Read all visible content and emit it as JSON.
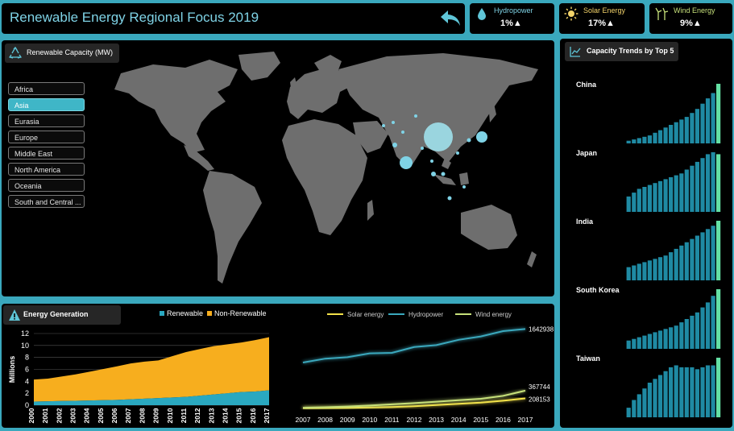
{
  "header": {
    "title": "Renewable Energy Regional Focus 2019"
  },
  "kpis": [
    {
      "label": "Hydropower",
      "value": "1%▲",
      "icon": "water-drop-icon",
      "label_color": "#7fd3e6"
    },
    {
      "label": "Solar Energy",
      "value": "17%▲",
      "icon": "sun-icon",
      "label_color": "#f3d36a"
    },
    {
      "label": "Wind Energy",
      "value": "9%▲",
      "icon": "wind-turbine-icon",
      "label_color": "#c6e07a"
    }
  ],
  "map": {
    "header": "Renewable Capacity (MW)",
    "regions": [
      "Africa",
      "Asia",
      "Eurasia",
      "Europe",
      "Middle East",
      "North America",
      "Oceania",
      "South and Central ..."
    ],
    "selected_region": "Asia"
  },
  "trends": {
    "header": "Capacity Trends by Top 5",
    "countries": [
      "China",
      "Japan",
      "India",
      "South Korea",
      "Taiwan"
    ]
  },
  "generation": {
    "header": "Energy Generation",
    "legend": [
      "Renewable",
      "Non-Renewable"
    ]
  },
  "colors": {
    "accent": "#3aa8bd",
    "renewable": "#2aa8c0",
    "non_renewable": "#f7ae1e",
    "solar": "#f3e24a",
    "hydro": "#3aa8bd",
    "wind": "#c6e07a"
  },
  "chart_data": [
    {
      "type": "area",
      "title": "Energy Generation",
      "ylabel": "Millions",
      "ylim": [
        0,
        12
      ],
      "x": [
        "2000",
        "2001",
        "2002",
        "2003",
        "2004",
        "2005",
        "2006",
        "2007",
        "2008",
        "2009",
        "2010",
        "2011",
        "2012",
        "2013",
        "2014",
        "2015",
        "2016",
        "2017"
      ],
      "yticks": [
        "0",
        "2",
        "4",
        "6",
        "8",
        "10",
        "12"
      ],
      "series": [
        {
          "name": "Renewable",
          "values": [
            0.6,
            0.65,
            0.7,
            0.75,
            0.8,
            0.85,
            0.9,
            1.0,
            1.1,
            1.2,
            1.3,
            1.4,
            1.6,
            1.8,
            2.0,
            2.2,
            2.3,
            2.5
          ]
        },
        {
          "name": "Non-Renewable",
          "values": [
            3.7,
            3.8,
            4.1,
            4.4,
            4.8,
            5.2,
            5.6,
            6.0,
            6.2,
            6.3,
            6.9,
            7.5,
            7.8,
            8.1,
            8.2,
            8.3,
            8.6,
            8.9
          ]
        }
      ]
    },
    {
      "type": "line",
      "x": [
        "2007",
        "2008",
        "2009",
        "2010",
        "2011",
        "2012",
        "2013",
        "2014",
        "2015",
        "2016",
        "2017"
      ],
      "ylim": [
        0,
        1800000
      ],
      "series": [
        {
          "name": "Solar energy",
          "values": [
            5000,
            8000,
            12000,
            20000,
            30000,
            45000,
            70000,
            95000,
            120000,
            160000,
            208153
          ]
        },
        {
          "name": "Hydropower",
          "values": [
            950000,
            1030000,
            1060000,
            1140000,
            1150000,
            1270000,
            1310000,
            1420000,
            1490000,
            1600000,
            1642938
          ]
        },
        {
          "name": "Wind energy",
          "values": [
            15000,
            25000,
            40000,
            60000,
            85000,
            110000,
            140000,
            170000,
            200000,
            260000,
            367744
          ]
        }
      ],
      "end_labels": [
        "208153",
        "1642938",
        "367744"
      ]
    },
    {
      "type": "bar",
      "title": "China",
      "values": [
        2,
        3,
        4,
        5,
        6,
        8,
        10,
        12,
        14,
        16,
        18,
        20,
        23,
        26,
        30,
        34,
        38,
        45
      ]
    },
    {
      "type": "bar",
      "title": "Japan",
      "values": [
        8,
        10,
        12,
        13,
        14,
        15,
        16,
        17,
        18,
        19,
        20,
        22,
        24,
        26,
        28,
        30,
        31,
        30
      ]
    },
    {
      "type": "bar",
      "title": "India",
      "values": [
        8,
        9,
        10,
        11,
        12,
        13,
        14,
        15,
        17,
        19,
        21,
        23,
        25,
        27,
        29,
        31,
        33,
        36
      ]
    },
    {
      "type": "bar",
      "title": "South Korea",
      "values": [
        5,
        6,
        7,
        8,
        9,
        10,
        11,
        12,
        13,
        14,
        16,
        18,
        20,
        22,
        25,
        28,
        32,
        36
      ]
    },
    {
      "type": "bar",
      "title": "Taiwan",
      "values": [
        5,
        9,
        12,
        15,
        18,
        20,
        22,
        24,
        26,
        27,
        26,
        26,
        26,
        25,
        26,
        27,
        27,
        31
      ]
    }
  ]
}
